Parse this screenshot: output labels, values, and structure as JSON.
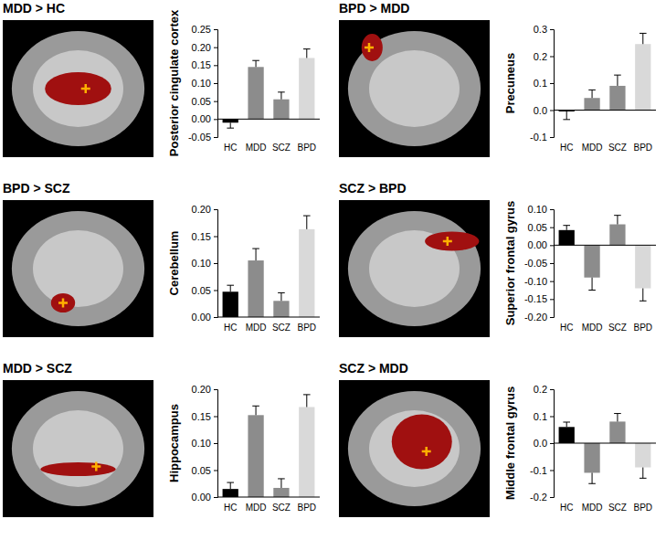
{
  "chart_data": [
    {
      "type": "bar",
      "title": "MDD > HC",
      "y_label": "Posterior cingulate cortex",
      "categories": [
        "HC",
        "MDD",
        "SCZ",
        "BPD"
      ],
      "values": [
        -0.01,
        0.145,
        0.055,
        0.17
      ],
      "errors": [
        0.015,
        0.018,
        0.02,
        0.025
      ],
      "colors": [
        "#000000",
        "#8c8c8c",
        "#8c8c8c",
        "#d9d9d9"
      ],
      "ylim": [
        -0.05,
        0.25
      ],
      "yticks": [
        -0.05,
        {
          "value": 0,
          "label": "0.00"
        },
        0.05,
        {
          "value": 0.1,
          "label": "0.10"
        },
        0.15,
        {
          "value": 0.2,
          "label": "0.20"
        },
        0.25
      ]
    },
    {
      "type": "bar",
      "title": "BPD > MDD",
      "y_label": "Precuneus",
      "categories": [
        "HC",
        "MDD",
        "SCZ",
        "BPD"
      ],
      "values": [
        -0.005,
        0.045,
        0.09,
        0.245
      ],
      "errors": [
        0.03,
        0.03,
        0.04,
        0.04
      ],
      "colors": [
        "#000000",
        "#8c8c8c",
        "#8c8c8c",
        "#d9d9d9"
      ],
      "ylim": [
        -0.1,
        0.3
      ],
      "yticks": [
        -0.1,
        {
          "value": 0,
          "label": "0.0"
        },
        0.1,
        0.2,
        0.3
      ]
    },
    {
      "type": "bar",
      "title": "BPD > SCZ",
      "y_label": "Cerebellum",
      "categories": [
        "HC",
        "MDD",
        "SCZ",
        "BPD"
      ],
      "values": [
        0.047,
        0.105,
        0.03,
        0.163
      ],
      "errors": [
        0.012,
        0.022,
        0.015,
        0.025
      ],
      "colors": [
        "#000000",
        "#8c8c8c",
        "#8c8c8c",
        "#d9d9d9"
      ],
      "ylim": [
        0,
        0.2
      ],
      "yticks": [
        {
          "value": 0,
          "label": "0.00"
        },
        0.05,
        {
          "value": 0.1,
          "label": "0.10"
        },
        0.15,
        {
          "value": 0.2,
          "label": "0.20"
        }
      ]
    },
    {
      "type": "bar",
      "title": "SCZ > BPD",
      "y_label": "Superior frontal gyrus",
      "categories": [
        "HC",
        "MDD",
        "SCZ",
        "BPD"
      ],
      "values": [
        0.042,
        -0.09,
        0.058,
        -0.12
      ],
      "errors": [
        0.013,
        0.035,
        0.025,
        0.035
      ],
      "colors": [
        "#000000",
        "#8c8c8c",
        "#8c8c8c",
        "#d9d9d9"
      ],
      "ylim": [
        -0.2,
        0.1
      ],
      "yticks": [
        {
          "value": -0.2,
          "label": "-0.20"
        },
        -0.15,
        {
          "value": -0.1,
          "label": "-0.10"
        },
        -0.05,
        {
          "value": 0,
          "label": "0.00"
        },
        0.05,
        {
          "value": 0.1,
          "label": "0.10"
        }
      ]
    },
    {
      "type": "bar",
      "title": "MDD > SCZ",
      "y_label": "Hippocampus",
      "categories": [
        "HC",
        "MDD",
        "SCZ",
        "BPD"
      ],
      "values": [
        0.015,
        0.152,
        0.017,
        0.167
      ],
      "errors": [
        0.012,
        0.017,
        0.017,
        0.023
      ],
      "colors": [
        "#000000",
        "#8c8c8c",
        "#8c8c8c",
        "#d9d9d9"
      ],
      "ylim": [
        0,
        0.2
      ],
      "yticks": [
        {
          "value": 0,
          "label": "0.00"
        },
        0.05,
        {
          "value": 0.1,
          "label": "0.10"
        },
        0.15,
        {
          "value": 0.2,
          "label": "0.20"
        }
      ]
    },
    {
      "type": "bar",
      "title": "SCZ > MDD",
      "y_label": "Middle frontal gyrus",
      "categories": [
        "HC",
        "MDD",
        "SCZ",
        "BPD"
      ],
      "values": [
        0.06,
        -0.11,
        0.08,
        -0.09
      ],
      "errors": [
        0.018,
        0.04,
        0.03,
        0.04
      ],
      "colors": [
        "#000000",
        "#8c8c8c",
        "#8c8c8c",
        "#d9d9d9"
      ],
      "ylim": [
        -0.2,
        0.2
      ],
      "yticks": [
        -0.2,
        -0.1,
        {
          "value": 0,
          "label": "0.0"
        },
        0.1,
        0.2
      ]
    }
  ]
}
